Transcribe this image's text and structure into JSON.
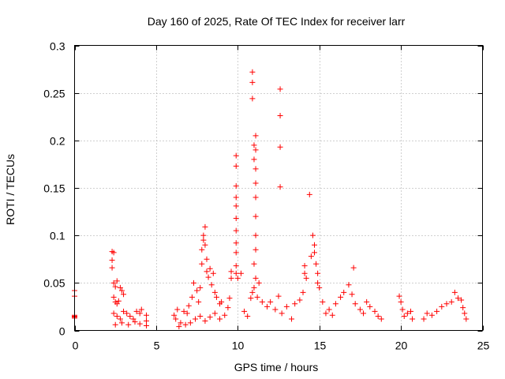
{
  "chart_data": {
    "type": "scatter",
    "title": "Day 160 of 2025, Rate Of TEC Index for receiver larr",
    "xlabel": "GPS time / hours",
    "ylabel": "ROTI / TECUs",
    "xlim": [
      0,
      25
    ],
    "ylim": [
      0,
      0.3
    ],
    "xticks": [
      0,
      5,
      10,
      15,
      20,
      25
    ],
    "xtick_labels": [
      "0",
      "5",
      "10",
      "15",
      "20",
      "25"
    ],
    "yticks": [
      0,
      0.05,
      0.1,
      0.15,
      0.2,
      0.25,
      0.3
    ],
    "ytick_labels": [
      "0",
      "0.05",
      "0.1",
      "0.15",
      "0.2",
      "0.25",
      "0.3"
    ],
    "grid": true,
    "marker": "+",
    "color": "#ff0000",
    "series": [
      {
        "values": [
          [
            0.0,
            0.042
          ],
          [
            0.0,
            0.036
          ],
          [
            0.0,
            0.016
          ],
          [
            0.0,
            0.013
          ],
          [
            0.0,
            0.014
          ],
          [
            0.0,
            0.015
          ],
          [
            2.3,
            0.083
          ],
          [
            2.4,
            0.082
          ],
          [
            2.3,
            0.074
          ],
          [
            2.3,
            0.066
          ],
          [
            2.4,
            0.05
          ],
          [
            2.5,
            0.046
          ],
          [
            2.6,
            0.052
          ],
          [
            2.4,
            0.035
          ],
          [
            2.5,
            0.03
          ],
          [
            2.6,
            0.028
          ],
          [
            2.7,
            0.031
          ],
          [
            2.8,
            0.045
          ],
          [
            2.9,
            0.042
          ],
          [
            3.0,
            0.038
          ],
          [
            2.4,
            0.018
          ],
          [
            2.6,
            0.015
          ],
          [
            2.8,
            0.012
          ],
          [
            3.0,
            0.02
          ],
          [
            3.2,
            0.018
          ],
          [
            3.4,
            0.015
          ],
          [
            3.6,
            0.012
          ],
          [
            3.8,
            0.02
          ],
          [
            4.0,
            0.018
          ],
          [
            4.1,
            0.022
          ],
          [
            4.4,
            0.016
          ],
          [
            4.4,
            0.01
          ],
          [
            4.4,
            0.005
          ],
          [
            2.5,
            0.006
          ],
          [
            2.9,
            0.008
          ],
          [
            3.3,
            0.006
          ],
          [
            3.7,
            0.009
          ],
          [
            4.0,
            0.007
          ],
          [
            6.1,
            0.016
          ],
          [
            6.2,
            0.012
          ],
          [
            6.3,
            0.022
          ],
          [
            6.5,
            0.008
          ],
          [
            6.7,
            0.02
          ],
          [
            6.9,
            0.018
          ],
          [
            7.0,
            0.026
          ],
          [
            7.2,
            0.035
          ],
          [
            7.3,
            0.05
          ],
          [
            7.5,
            0.042
          ],
          [
            7.6,
            0.03
          ],
          [
            7.7,
            0.045
          ],
          [
            7.8,
            0.07
          ],
          [
            7.8,
            0.085
          ],
          [
            7.9,
            0.095
          ],
          [
            7.9,
            0.1
          ],
          [
            8.0,
            0.109
          ],
          [
            8.0,
            0.09
          ],
          [
            8.1,
            0.075
          ],
          [
            8.1,
            0.062
          ],
          [
            8.2,
            0.056
          ],
          [
            8.3,
            0.065
          ],
          [
            8.4,
            0.048
          ],
          [
            8.5,
            0.06
          ],
          [
            8.6,
            0.04
          ],
          [
            8.7,
            0.035
          ],
          [
            8.9,
            0.028
          ],
          [
            9.0,
            0.03
          ],
          [
            6.4,
            0.004
          ],
          [
            6.8,
            0.006
          ],
          [
            7.1,
            0.008
          ],
          [
            7.4,
            0.012
          ],
          [
            7.7,
            0.015
          ],
          [
            8.0,
            0.01
          ],
          [
            8.3,
            0.014
          ],
          [
            8.6,
            0.018
          ],
          [
            8.9,
            0.012
          ],
          [
            9.2,
            0.016
          ],
          [
            9.4,
            0.024
          ],
          [
            9.5,
            0.034
          ],
          [
            9.6,
            0.055
          ],
          [
            9.6,
            0.062
          ],
          [
            9.9,
            0.06
          ],
          [
            9.9,
            0.068
          ],
          [
            9.9,
            0.082
          ],
          [
            9.9,
            0.092
          ],
          [
            9.9,
            0.105
          ],
          [
            9.9,
            0.118
          ],
          [
            9.9,
            0.131
          ],
          [
            9.9,
            0.14
          ],
          [
            9.9,
            0.152
          ],
          [
            9.9,
            0.173
          ],
          [
            9.9,
            0.184
          ],
          [
            10.0,
            0.055
          ],
          [
            10.2,
            0.06
          ],
          [
            10.4,
            0.02
          ],
          [
            10.6,
            0.015
          ],
          [
            10.8,
            0.034
          ],
          [
            10.9,
            0.272
          ],
          [
            10.9,
            0.261
          ],
          [
            10.9,
            0.244
          ],
          [
            11.0,
            0.18
          ],
          [
            11.0,
            0.195
          ],
          [
            11.1,
            0.205
          ],
          [
            11.1,
            0.19
          ],
          [
            11.1,
            0.17
          ],
          [
            11.1,
            0.155
          ],
          [
            11.1,
            0.14
          ],
          [
            11.1,
            0.12
          ],
          [
            11.1,
            0.1
          ],
          [
            11.1,
            0.085
          ],
          [
            11.0,
            0.07
          ],
          [
            11.1,
            0.055
          ],
          [
            11.0,
            0.045
          ],
          [
            10.9,
            0.04
          ],
          [
            11.2,
            0.035
          ],
          [
            11.3,
            0.05
          ],
          [
            11.5,
            0.03
          ],
          [
            11.8,
            0.025
          ],
          [
            12.0,
            0.03
          ],
          [
            12.3,
            0.022
          ],
          [
            12.6,
            0.254
          ],
          [
            12.6,
            0.226
          ],
          [
            12.6,
            0.193
          ],
          [
            12.6,
            0.151
          ],
          [
            12.5,
            0.036
          ],
          [
            12.7,
            0.018
          ],
          [
            13.0,
            0.025
          ],
          [
            13.3,
            0.012
          ],
          [
            13.5,
            0.028
          ],
          [
            13.8,
            0.032
          ],
          [
            14.0,
            0.04
          ],
          [
            14.1,
            0.068
          ],
          [
            14.1,
            0.06
          ],
          [
            14.2,
            0.055
          ],
          [
            14.4,
            0.143
          ],
          [
            14.5,
            0.078
          ],
          [
            14.6,
            0.1
          ],
          [
            14.7,
            0.09
          ],
          [
            14.7,
            0.082
          ],
          [
            14.8,
            0.07
          ],
          [
            14.9,
            0.06
          ],
          [
            14.9,
            0.05
          ],
          [
            15.0,
            0.045
          ],
          [
            15.2,
            0.03
          ],
          [
            15.4,
            0.018
          ],
          [
            15.6,
            0.022
          ],
          [
            15.8,
            0.016
          ],
          [
            16.0,
            0.028
          ],
          [
            16.3,
            0.035
          ],
          [
            16.5,
            0.04
          ],
          [
            16.8,
            0.048
          ],
          [
            17.0,
            0.038
          ],
          [
            17.1,
            0.066
          ],
          [
            17.2,
            0.028
          ],
          [
            17.5,
            0.022
          ],
          [
            17.7,
            0.018
          ],
          [
            17.9,
            0.03
          ],
          [
            18.1,
            0.025
          ],
          [
            18.4,
            0.02
          ],
          [
            18.6,
            0.015
          ],
          [
            18.8,
            0.012
          ],
          [
            19.9,
            0.036
          ],
          [
            20.0,
            0.03
          ],
          [
            20.1,
            0.022
          ],
          [
            20.2,
            0.015
          ],
          [
            20.4,
            0.018
          ],
          [
            20.6,
            0.02
          ],
          [
            20.7,
            0.012
          ],
          [
            21.4,
            0.012
          ],
          [
            21.6,
            0.018
          ],
          [
            21.9,
            0.016
          ],
          [
            22.2,
            0.02
          ],
          [
            22.5,
            0.025
          ],
          [
            22.8,
            0.028
          ],
          [
            23.1,
            0.03
          ],
          [
            23.3,
            0.04
          ],
          [
            23.5,
            0.034
          ],
          [
            23.7,
            0.032
          ],
          [
            23.8,
            0.024
          ],
          [
            23.9,
            0.018
          ],
          [
            24.0,
            0.012
          ]
        ]
      }
    ]
  }
}
